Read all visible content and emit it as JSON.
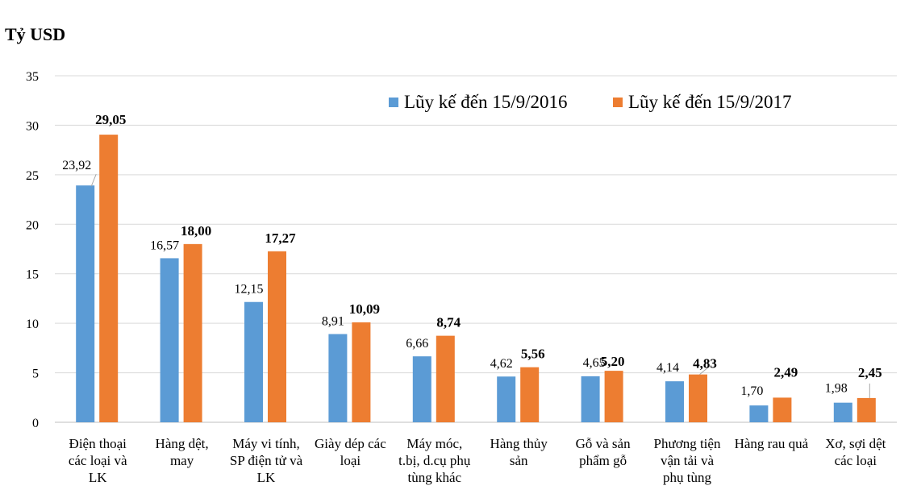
{
  "chart_data": {
    "type": "bar",
    "ylabel": "Tỷ USD",
    "ylim": [
      0,
      35
    ],
    "yticks": [
      "0",
      "5",
      "10",
      "15",
      "20",
      "25",
      "30",
      "35"
    ],
    "grid": true,
    "legend_position": "top-right",
    "categories": [
      [
        "Điện thoại",
        "các loại và",
        "LK"
      ],
      [
        "Hàng dệt,",
        "may"
      ],
      [
        "Máy vi tính,",
        "SP điện tử và",
        "LK"
      ],
      [
        "Giày dép các",
        "loại"
      ],
      [
        "Máy móc,",
        "t.bị, d.cụ phụ",
        "tùng khác"
      ],
      [
        "Hàng thủy",
        "sản"
      ],
      [
        "Gỗ và sản",
        "phẩm gỗ"
      ],
      [
        "Phương tiện",
        "vận tải và",
        "phụ tùng"
      ],
      [
        "Hàng rau quả"
      ],
      [
        "Xơ, sợi dệt",
        "các loại"
      ]
    ],
    "series": [
      {
        "name": "Lũy kế đến 15/9/2016",
        "color": "#5B9BD5",
        "values": [
          23.92,
          16.57,
          12.15,
          8.91,
          6.66,
          4.62,
          4.65,
          4.14,
          1.7,
          1.98
        ],
        "labels": [
          "23,92",
          "16,57",
          "12,15",
          "8,91",
          "6,66",
          "4,62",
          "4,65",
          "4,14",
          "1,70",
          "1,98"
        ]
      },
      {
        "name": "Lũy kế đến 15/9/2017",
        "color": "#ED7D31",
        "values": [
          29.05,
          18.0,
          17.27,
          10.09,
          8.74,
          5.56,
          5.2,
          4.83,
          2.49,
          2.45
        ],
        "labels": [
          "29,05",
          "18,00",
          "17,27",
          "10,09",
          "8,74",
          "5,56",
          "5,20",
          "4,83",
          "2,49",
          "2,45"
        ]
      }
    ]
  }
}
